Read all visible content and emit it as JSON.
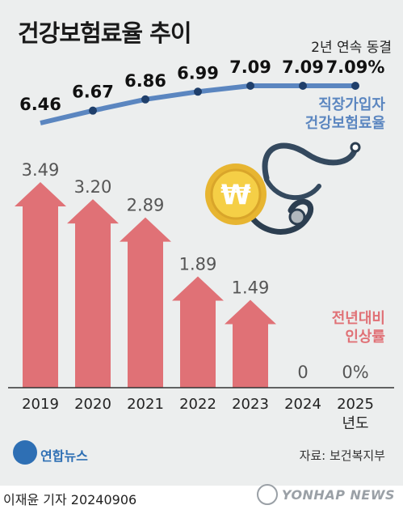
{
  "title": "건강보험료율 추이",
  "streak_note": "2년 연속 동결",
  "line_label_lines": [
    "직장가입자",
    "건강보험료율"
  ],
  "bar_label_lines": [
    "전년대비",
    "인상률"
  ],
  "source": "자료: 보건복지부",
  "logo_text": "연합뉴스",
  "byline": "이재윤 기자  20240906",
  "watermark": "YONHAP NEWS",
  "year_unit": "년도",
  "colors": {
    "line": "#5b86c0",
    "bar": "#e07176",
    "background": "#eceeee"
  },
  "icons": [
    "won-coin-icon",
    "stethoscope-icon"
  ],
  "chart_data": [
    {
      "type": "line",
      "x": [
        "2019",
        "2020",
        "2021",
        "2022",
        "2023",
        "2024",
        "2025"
      ],
      "values": [
        6.46,
        6.67,
        6.86,
        6.99,
        7.09,
        7.09,
        7.09
      ],
      "labels": [
        "6.46",
        "6.67",
        "6.86",
        "6.99",
        "7.09",
        "7.09",
        "7.09%"
      ],
      "series_name": "직장가입자 건강보험료율"
    },
    {
      "type": "bar",
      "categories": [
        "2019",
        "2020",
        "2021",
        "2022",
        "2023",
        "2024",
        "2025"
      ],
      "values": [
        3.49,
        3.2,
        2.89,
        1.89,
        1.49,
        0,
        0
      ],
      "labels": [
        "3.49",
        "3.20",
        "2.89",
        "1.89",
        "1.49",
        "0",
        "0%"
      ],
      "series_name": "전년대비 인상률"
    }
  ]
}
